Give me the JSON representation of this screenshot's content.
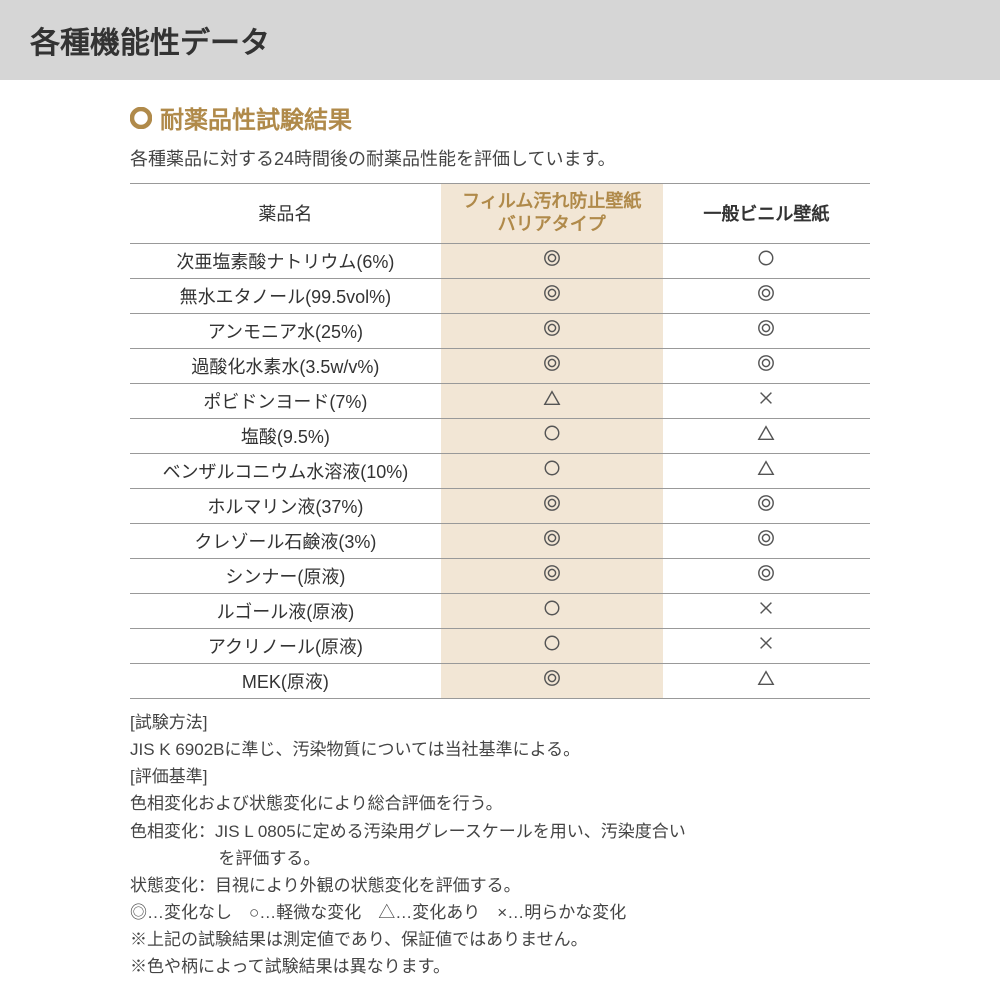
{
  "header": {
    "title": "各種機能性データ"
  },
  "section": {
    "title": "耐薬品性試験結果",
    "intro": "各種薬品に対する24時間後の耐薬品性能を評価しています。"
  },
  "table": {
    "columns": {
      "name": "薬品名",
      "film_l1": "フィルム汚れ防止壁紙",
      "film_l2": "バリアタイプ",
      "std": "一般ビニル壁紙"
    },
    "rows": [
      {
        "name": "次亜塩素酸ナトリウム(6%)",
        "film": "dc",
        "std": "c"
      },
      {
        "name": "無水エタノール(99.5vol%)",
        "film": "dc",
        "std": "dc"
      },
      {
        "name": "アンモニア水(25%)",
        "film": "dc",
        "std": "dc"
      },
      {
        "name": "過酸化水素水(3.5w/v%)",
        "film": "dc",
        "std": "dc"
      },
      {
        "name": "ポビドンヨード(7%)",
        "film": "tri",
        "std": "x"
      },
      {
        "name": "塩酸(9.5%)",
        "film": "c",
        "std": "tri"
      },
      {
        "name": "ベンザルコニウム水溶液(10%)",
        "film": "c",
        "std": "tri"
      },
      {
        "name": "ホルマリン液(37%)",
        "film": "dc",
        "std": "dc"
      },
      {
        "name": "クレゾール石鹸液(3%)",
        "film": "dc",
        "std": "dc"
      },
      {
        "name": "シンナー(原液)",
        "film": "dc",
        "std": "dc"
      },
      {
        "name": "ルゴール液(原液)",
        "film": "c",
        "std": "x"
      },
      {
        "name": "アクリノール(原液)",
        "film": "c",
        "std": "x"
      },
      {
        "name": "MEK(原液)",
        "film": "dc",
        "std": "tri"
      }
    ]
  },
  "notes": {
    "l1": "[試験方法]",
    "l2": "JIS K 6902Bに準じ、汚染物質については当社基準による。",
    "l3": "[評価基準]",
    "l4": "色相変化および状態変化により総合評価を行う。",
    "l5": "色相変化：JIS L 0805に定める汚染用グレースケールを用い、汚染度合い",
    "l5b": "を評価する。",
    "l6": "状態変化：目視により外観の状態変化を評価する。",
    "l7": "◎…変化なし　○…軽微な変化　△…変化あり　×…明らかな変化",
    "l8": "※上記の試験結果は測定値であり、保証値ではありません。",
    "l9": "※色や柄によって試験結果は異なります。"
  },
  "colors": {
    "header_bg": "#d6d6d6",
    "accent": "#b08a4a",
    "film_bg": "#f2e6d5",
    "border": "#999999",
    "text": "#333333",
    "symbol": "#555555"
  },
  "symbol_svg": {
    "stroke": "#555555",
    "stroke_width": 1.6,
    "size": 18
  }
}
